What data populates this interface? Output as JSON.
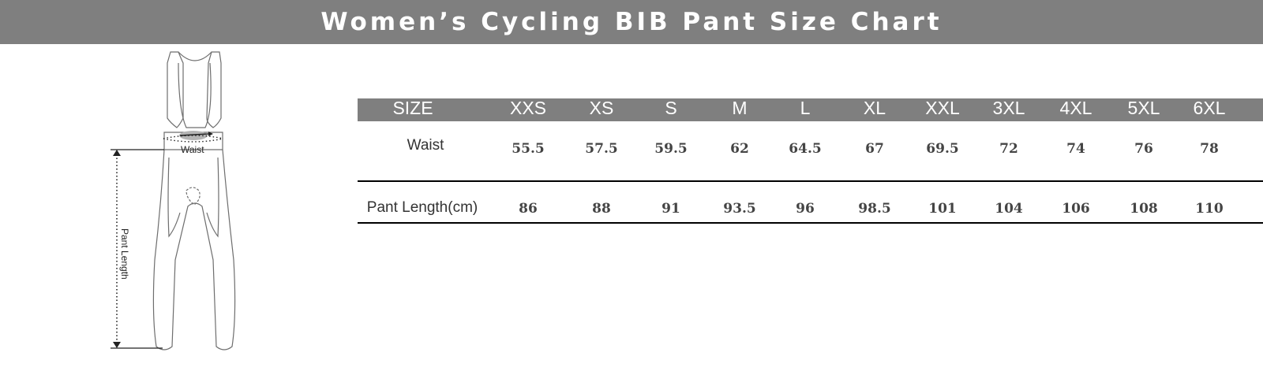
{
  "title": "Women’s Cycling BIB Pant Size Chart",
  "diagram": {
    "waist_label": "Waist",
    "length_label": "Pant Length"
  },
  "table": {
    "header_label": "SIZE",
    "sizes": [
      "XXS",
      "XS",
      "S",
      "M",
      "L",
      "XL",
      "XXL",
      "3XL",
      "4XL",
      "5XL",
      "6XL"
    ],
    "rows": [
      {
        "label": "Waist",
        "values": [
          "55.5",
          "57.5",
          "59.5",
          "62",
          "64.5",
          "67",
          "69.5",
          "72",
          "74",
          "76",
          "78"
        ]
      },
      {
        "label": "Pant Length(cm)",
        "values": [
          "86",
          "88",
          "91",
          "93.5",
          "96",
          "98.5",
          "101",
          "104",
          "106",
          "108",
          "110"
        ]
      }
    ]
  },
  "colors": {
    "bar": "#7f7f7f",
    "rule": "#000000"
  }
}
